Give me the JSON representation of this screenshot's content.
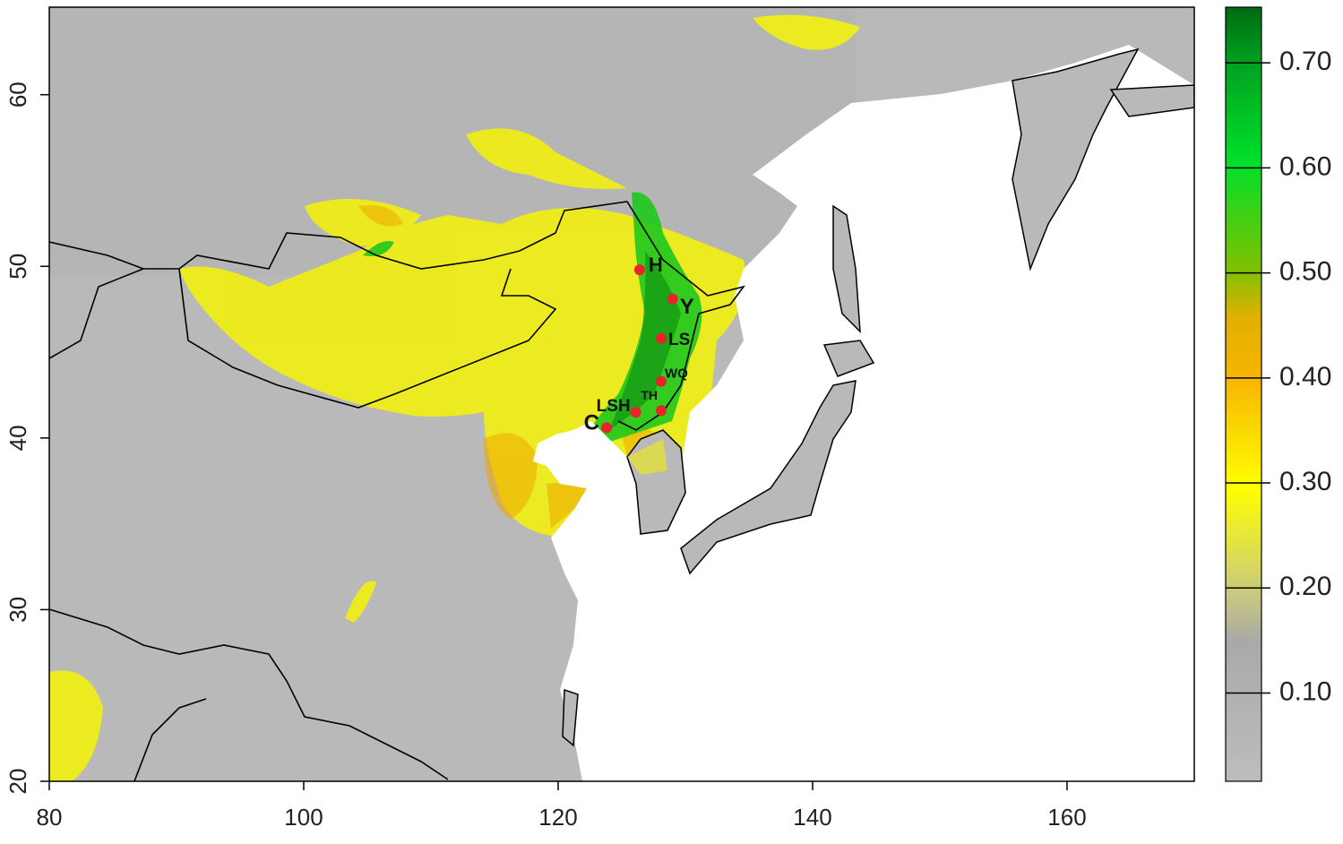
{
  "chart_data": {
    "type": "map",
    "xlim": [
      80,
      170
    ],
    "ylim": [
      20,
      65.1
    ],
    "xticks": [
      80,
      100,
      120,
      140,
      160
    ],
    "yticks": [
      20,
      30,
      40,
      50,
      60
    ],
    "point_color": "#e8242a",
    "sites": [
      {
        "label": "H",
        "lon": 126.4,
        "lat": 49.8
      },
      {
        "label": "Y",
        "lon": 129.0,
        "lat": 48.1
      },
      {
        "label": "LS",
        "lon": 128.1,
        "lat": 45.8
      },
      {
        "label": "WQ",
        "lon": 128.1,
        "lat": 43.3
      },
      {
        "label": "TH",
        "lon": 128.1,
        "lat": 41.6
      },
      {
        "label": "LSH",
        "lon": 126.1,
        "lat": 41.5
      },
      {
        "label": "C",
        "lon": 123.8,
        "lat": 40.6
      }
    ],
    "colorbar": {
      "lim": [
        0.016,
        0.753
      ],
      "ticks": [
        {
          "value": 0.1,
          "label": "0.10"
        },
        {
          "value": 0.2,
          "label": "0.20"
        },
        {
          "value": 0.3,
          "label": "0.30"
        },
        {
          "value": 0.4,
          "label": "0.40"
        },
        {
          "value": 0.5,
          "label": "0.50"
        },
        {
          "value": 0.6,
          "label": "0.60"
        },
        {
          "value": 0.7,
          "label": "0.70"
        }
      ]
    }
  }
}
